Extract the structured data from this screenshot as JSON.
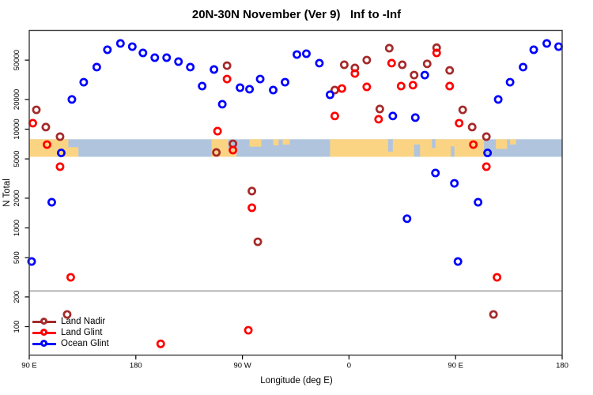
{
  "title": "20N-30N November (Ver 9)   Inf to -Inf",
  "axes": {
    "x": {
      "label": "Longitude (deg E)",
      "ticks": [
        {
          "lon": 90,
          "label": "90 E"
        },
        {
          "lon": 180,
          "label": "180"
        },
        {
          "lon": 270,
          "label": "90 W"
        },
        {
          "lon": 360,
          "label": "0"
        },
        {
          "lon": 450,
          "label": "90 E"
        },
        {
          "lon": 540,
          "label": "180"
        }
      ]
    },
    "y": {
      "label": "N Total",
      "scale": "log",
      "ticks": [
        {
          "value": 100,
          "label": "100"
        },
        {
          "value": 200,
          "label": "200"
        },
        {
          "value": 500,
          "label": "500"
        },
        {
          "value": 1000,
          "label": "1000"
        },
        {
          "value": 2000,
          "label": "2000"
        },
        {
          "value": 5000,
          "label": "5000"
        },
        {
          "value": 10000,
          "label": "10000"
        },
        {
          "value": 20000,
          "label": "20000"
        },
        {
          "value": 50000,
          "label": "50000"
        }
      ]
    }
  },
  "legend": {
    "items": [
      {
        "label": "Land Nadir",
        "color": "#A52A2A"
      },
      {
        "label": "Land Glint",
        "color": "#FF0000"
      },
      {
        "label": "Ocean Glint",
        "color": "#0000FF"
      }
    ]
  },
  "colors": {
    "ocean_band": "#B0C4DE",
    "land_band": "#FBD483",
    "threshold_line": "#A6A6A6",
    "plot_border": "#3c3c3c",
    "text": "#000000",
    "background": "#ffffff"
  },
  "chart_data": {
    "type": "scatter",
    "title": "20N-30N November (Ver 9)   Inf to -Inf",
    "xlabel": "Longitude (deg E)",
    "ylabel": "N Total",
    "x_axis_note": "Longitude plotted eastward from 90E through 180, 90W, 0, back to 180 (450 deg span); points with lon <= 180E are repeated again at lon+360",
    "y_scale": "log",
    "ylim": [
      52,
      110000
    ],
    "xlim_plot_lon": [
      90,
      540
    ],
    "grid": false,
    "threshold_line": {
      "value": 230
    },
    "map_band": {
      "description": "world-map strip of the 20N-30N latitude band drawn across the plot",
      "value_top": 7900,
      "value_bottom": 5250,
      "land_segments_lon": [
        [
          90,
          123,
          0,
          1
        ],
        [
          123,
          131.5,
          0.45,
          1
        ],
        [
          244,
          258,
          0,
          1
        ],
        [
          258,
          265,
          0.55,
          1
        ],
        [
          276,
          286,
          0,
          0.42
        ],
        [
          296,
          300.5,
          0,
          0.35
        ],
        [
          304,
          310,
          0,
          0.3
        ],
        [
          344,
          474,
          0,
          1
        ],
        [
          484,
          493.5,
          0,
          0.55
        ],
        [
          496,
          501,
          0,
          0.3
        ]
      ],
      "ocean_gaps_lon": [
        [
          393,
          397,
          0,
          0.7
        ],
        [
          415,
          420,
          0.3,
          1
        ],
        [
          430,
          433,
          0,
          0.5
        ],
        [
          446,
          449,
          0.4,
          1
        ]
      ]
    },
    "series": [
      {
        "name": "Land Nadir",
        "color": "#A52A2A",
        "points": [
          [
            96,
            15700
          ],
          [
            104,
            10500
          ],
          [
            116,
            8400
          ],
          [
            122,
            133
          ],
          [
            248,
            5810
          ],
          [
            257,
            44000
          ],
          [
            262,
            7110
          ],
          [
            278,
            2360
          ],
          [
            283,
            724
          ],
          [
            348,
            24900
          ],
          [
            356,
            44900
          ],
          [
            365,
            41700
          ],
          [
            375,
            50100
          ],
          [
            386,
            16000
          ],
          [
            394,
            66100
          ],
          [
            405,
            44900
          ],
          [
            415,
            35300
          ],
          [
            426,
            45900
          ],
          [
            434,
            66900
          ],
          [
            445,
            39400
          ]
        ]
      },
      {
        "name": "Land Glint",
        "color": "#FF0000",
        "points": [
          [
            93,
            11500
          ],
          [
            105,
            6980
          ],
          [
            116,
            4170
          ],
          [
            125,
            316
          ],
          [
            201,
            67
          ],
          [
            249,
            9550
          ],
          [
            257,
            32200
          ],
          [
            262,
            6140
          ],
          [
            275,
            92
          ],
          [
            278,
            1600
          ],
          [
            348,
            13600
          ],
          [
            354,
            25800
          ],
          [
            365,
            36600
          ],
          [
            375,
            26800
          ],
          [
            385,
            12600
          ],
          [
            396,
            46600
          ],
          [
            404,
            27300
          ],
          [
            414,
            27900
          ],
          [
            434,
            59200
          ],
          [
            445,
            27300
          ]
        ]
      },
      {
        "name": "Ocean Glint",
        "color": "#0000FF",
        "points": [
          [
            92,
            457
          ],
          [
            109,
            1820
          ],
          [
            117,
            5750
          ],
          [
            126,
            20000
          ],
          [
            136,
            29900
          ],
          [
            147,
            42500
          ],
          [
            156,
            63700
          ],
          [
            167,
            73800
          ],
          [
            177,
            68500
          ],
          [
            186,
            59200
          ],
          [
            196,
            53000
          ],
          [
            206,
            53000
          ],
          [
            216,
            48300
          ],
          [
            226,
            42500
          ],
          [
            236,
            27300
          ],
          [
            246,
            40200
          ],
          [
            253,
            17900
          ],
          [
            268,
            26300
          ],
          [
            276,
            25400
          ],
          [
            285,
            32200
          ],
          [
            296,
            24900
          ],
          [
            306,
            29900
          ],
          [
            316,
            57000
          ],
          [
            324,
            58100
          ],
          [
            335,
            46600
          ],
          [
            344,
            22300
          ],
          [
            397,
            13600
          ],
          [
            409,
            1240
          ],
          [
            416,
            13100
          ],
          [
            424,
            35300
          ],
          [
            433,
            3600
          ],
          [
            449,
            2830
          ]
        ]
      }
    ]
  }
}
